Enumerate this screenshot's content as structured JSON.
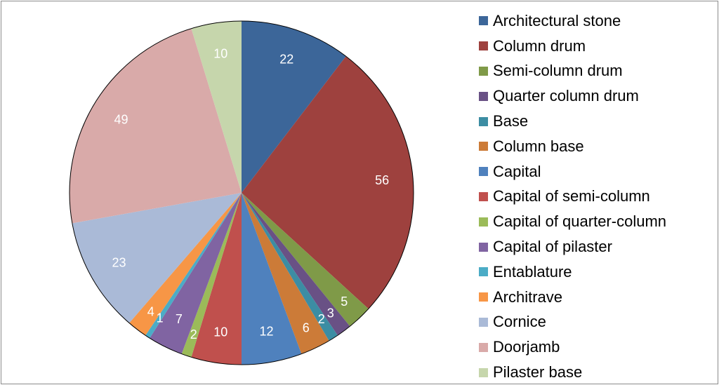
{
  "chart_data": {
    "type": "pie",
    "title": "",
    "start_angle_deg": 0,
    "direction": "clockwise",
    "slices": [
      {
        "label": "Architectural stone",
        "value": 22,
        "color": "#3C6699"
      },
      {
        "label": "Column drum",
        "value": 56,
        "color": "#9E413E"
      },
      {
        "label": "Semi-column drum",
        "value": 5,
        "color": "#7F9A48"
      },
      {
        "label": "Quarter column drum",
        "value": 3,
        "color": "#695185"
      },
      {
        "label": "Base",
        "value": 2,
        "color": "#3C8DA3"
      },
      {
        "label": "Column base",
        "value": 6,
        "color": "#CC7B38"
      },
      {
        "label": "Capital",
        "value": 12,
        "color": "#4F81BD"
      },
      {
        "label": "Capital of semi-column",
        "value": 10,
        "color": "#C0504D"
      },
      {
        "label": "Capital of quarter-column",
        "value": 2,
        "color": "#9BBB59"
      },
      {
        "label": "Capital of pilaster",
        "value": 7,
        "color": "#8064A2"
      },
      {
        "label": "Entablature",
        "value": 1,
        "color": "#4BACC6"
      },
      {
        "label": "Architrave",
        "value": 4,
        "color": "#F79646"
      },
      {
        "label": "Cornice",
        "value": 23,
        "color": "#AABAD7"
      },
      {
        "label": "Doorjamb",
        "value": 49,
        "color": "#D9AAA9"
      },
      {
        "label": "Pilaster base",
        "value": 10,
        "color": "#C6D6AC"
      }
    ],
    "legend_position": "right",
    "data_labels": "inside"
  }
}
